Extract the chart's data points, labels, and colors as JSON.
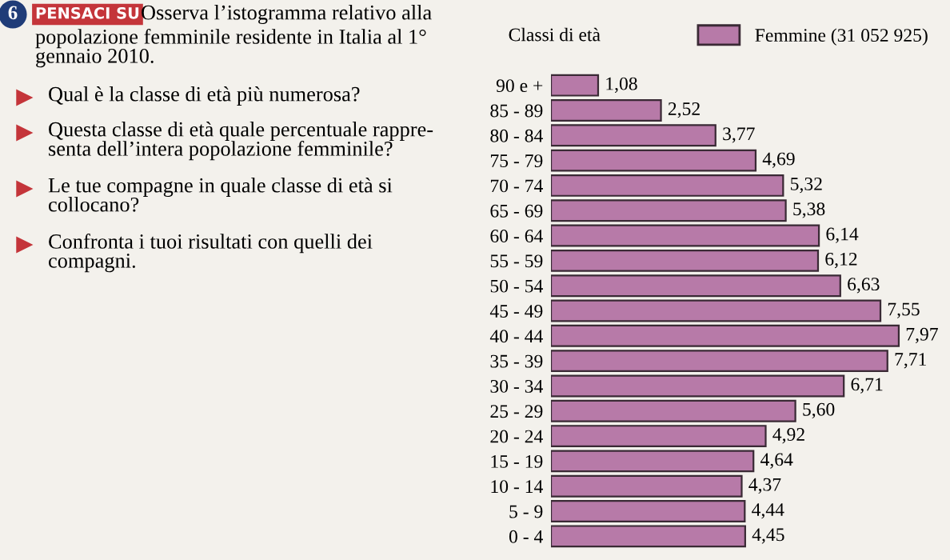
{
  "chart_data": {
    "type": "bar",
    "orientation": "horizontal",
    "ylabel": "Classi di età",
    "categories": [
      "90 e +",
      "85 - 89",
      "80 - 84",
      "75 - 79",
      "70 - 74",
      "65 - 69",
      "60 - 64",
      "55 - 59",
      "50 - 54",
      "45 - 49",
      "40 - 44",
      "35 - 39",
      "30 - 34",
      "25 - 29",
      "20 - 24",
      "15 - 19",
      "10 - 14",
      "5 - 9",
      "0 - 4"
    ],
    "series": [
      {
        "name": "Femmine (31 052 925)",
        "color": "#b77aa8",
        "values": [
          1.08,
          2.52,
          3.77,
          4.69,
          5.32,
          5.38,
          6.14,
          6.12,
          6.63,
          7.55,
          7.97,
          7.71,
          6.71,
          5.6,
          4.92,
          4.64,
          4.37,
          4.44,
          4.45
        ],
        "value_labels": [
          "1,08",
          "2,52",
          "3,77",
          "4,69",
          "5,32",
          "5,38",
          "6,14",
          "6,12",
          "6,63",
          "7,55",
          "7,97",
          "7,71",
          "6,71",
          "5,60",
          "4,92",
          "4,64",
          "4,37",
          "4,44",
          "4,45"
        ]
      }
    ],
    "legend": "top right",
    "grid": false,
    "annotations": [
      "6",
      "PENSACI SU",
      "Osserva l’istogramma relativo alla\npopolazione femminile residente in Italia al 1°\ngennaio 2010.",
      "Qual è la classe di età più numerosa?",
      "Questa classe di età quale percentuale rappre-\nsenta dell’intera popolazione femminile?",
      "Le tue compagne in quale classe di età si\ncollocano?",
      "Confronta i tuoi risultati con quelli dei\ncompagni."
    ]
  }
}
